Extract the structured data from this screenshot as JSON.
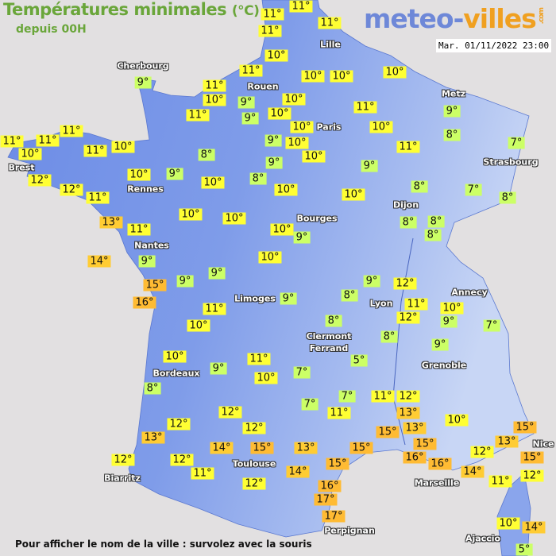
{
  "header": {
    "title": "Températures minimales",
    "unit": "(°C)",
    "subtitle": "depuis 00H",
    "logo_part1": "meteo-",
    "logo_part2": "villes",
    "logo_suffix": ".com",
    "datetime": "Mar. 01/11/2022 23:00"
  },
  "footer": "Pour afficher le nom de la ville : survolez avec la souris",
  "colors": {
    "land_west": "#6b8be6",
    "land_east": "#b8c8f0",
    "sea": "#e2e0e1",
    "cold_label": "#ccff66",
    "mild_label": "#ffff33",
    "warm_label": "#ffcc33",
    "hot_label": "#ffbb33",
    "title": "#6aa63a"
  },
  "cities": [
    "Cherbourg",
    "Rouen",
    "Lille",
    "Paris",
    "Metz",
    "Strasbourg",
    "Brest",
    "Rennes",
    "Nantes",
    "Dijon",
    "Bourges",
    "Limoges",
    "Lyon",
    "Annecy",
    "Clermont\nFerrand",
    "Grenoble",
    "Bordeaux",
    "Toulouse",
    "Biarritz",
    "Marseille",
    "Perpignan",
    "Nice",
    "Ajaccio"
  ],
  "temperatures": [
    11,
    11,
    11,
    11,
    10,
    11,
    9,
    11,
    10,
    9,
    9,
    10,
    10,
    10,
    10,
    10,
    11,
    11,
    10,
    10,
    9,
    8,
    11,
    11,
    11,
    10,
    11,
    10,
    9,
    10,
    10,
    11,
    7,
    8,
    9,
    12,
    10,
    9,
    10,
    8,
    9,
    8,
    7,
    8,
    12,
    11,
    10,
    10,
    13,
    11,
    10,
    10,
    8,
    8,
    8,
    10,
    9,
    14,
    9,
    10,
    15,
    9,
    9,
    16,
    9,
    12,
    9,
    8,
    11,
    10,
    11,
    10,
    12,
    9,
    7,
    8,
    8,
    9,
    10,
    9,
    11,
    10,
    5,
    7,
    8,
    7,
    11,
    12,
    7,
    11,
    13,
    12,
    10,
    12,
    13,
    12,
    15,
    13,
    15,
    13,
    15,
    14,
    15,
    13,
    15,
    16,
    16,
    12,
    15,
    12,
    12,
    14,
    15,
    14,
    11,
    12,
    11,
    12,
    16,
    17,
    17,
    10,
    14,
    5
  ],
  "degree_symbol": "°"
}
